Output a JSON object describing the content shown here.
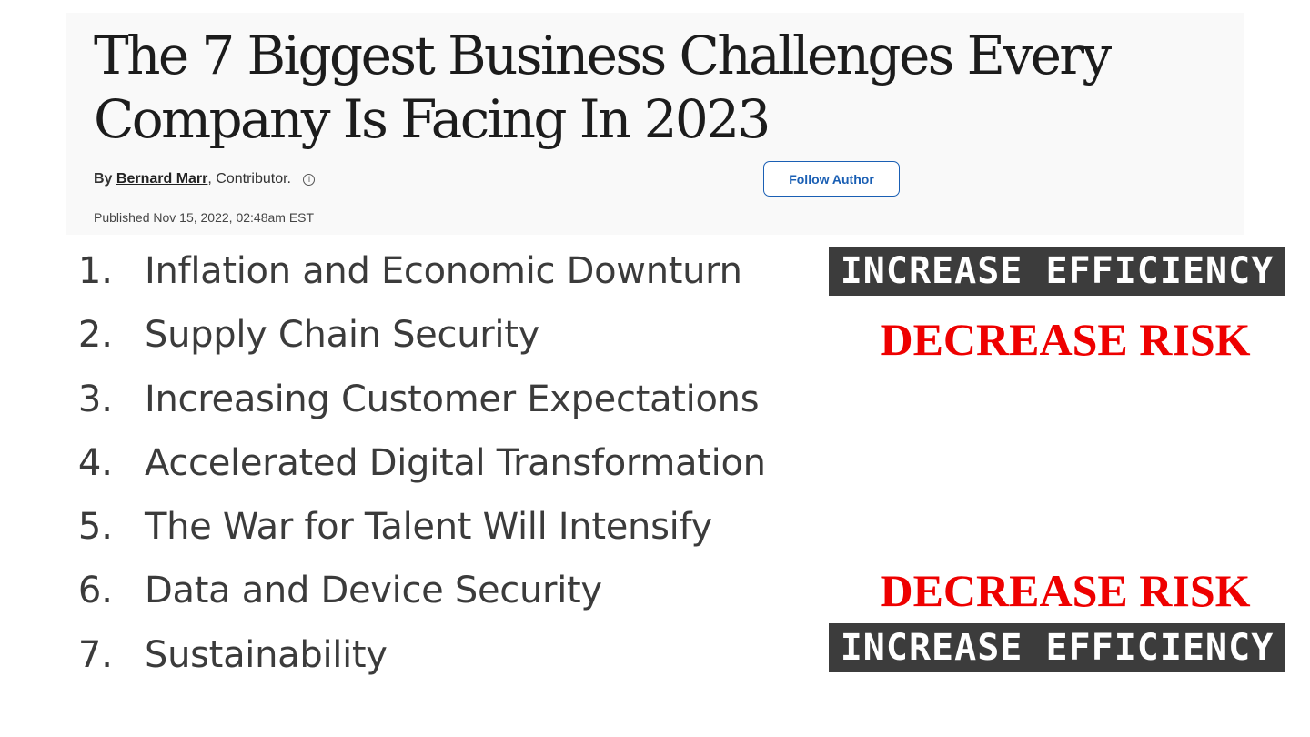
{
  "article": {
    "headline": "The 7 Biggest Business Challenges Every Company Is Facing In 2023",
    "byline_prefix": "By",
    "author": "Bernard Marr",
    "author_role": ", Contributor.",
    "info_icon": "info-icon",
    "follow_label": "Follow Author",
    "published": "Published Nov 15, 2022, 02:48am EST"
  },
  "challenges": [
    {
      "number": "1.",
      "text": "Inflation and Economic Downturn"
    },
    {
      "number": "2.",
      "text": "Supply Chain Security"
    },
    {
      "number": "3.",
      "text": "Increasing Customer Expectations"
    },
    {
      "number": "4.",
      "text": "Accelerated Digital Transformation"
    },
    {
      "number": "5.",
      "text": "The War for Talent Will Intensify"
    },
    {
      "number": "6.",
      "text": "Data and Device Security"
    },
    {
      "number": "7.",
      "text": "Sustainability"
    }
  ],
  "tags": [
    {
      "text": "INCREASE EFFICIENCY",
      "style": "efficiency"
    },
    {
      "text": "DECREASE RISK",
      "style": "risk"
    },
    {
      "text": "DECREASE RISK",
      "style": "risk"
    },
    {
      "text": "INCREASE EFFICIENCY",
      "style": "efficiency"
    }
  ],
  "colors": {
    "risk_red": "#ee0000",
    "efficiency_bg": "#3c3c3c",
    "link_blue": "#1a5fb4",
    "header_bg": "#f9f9f9",
    "list_text": "#3b3b3b"
  }
}
